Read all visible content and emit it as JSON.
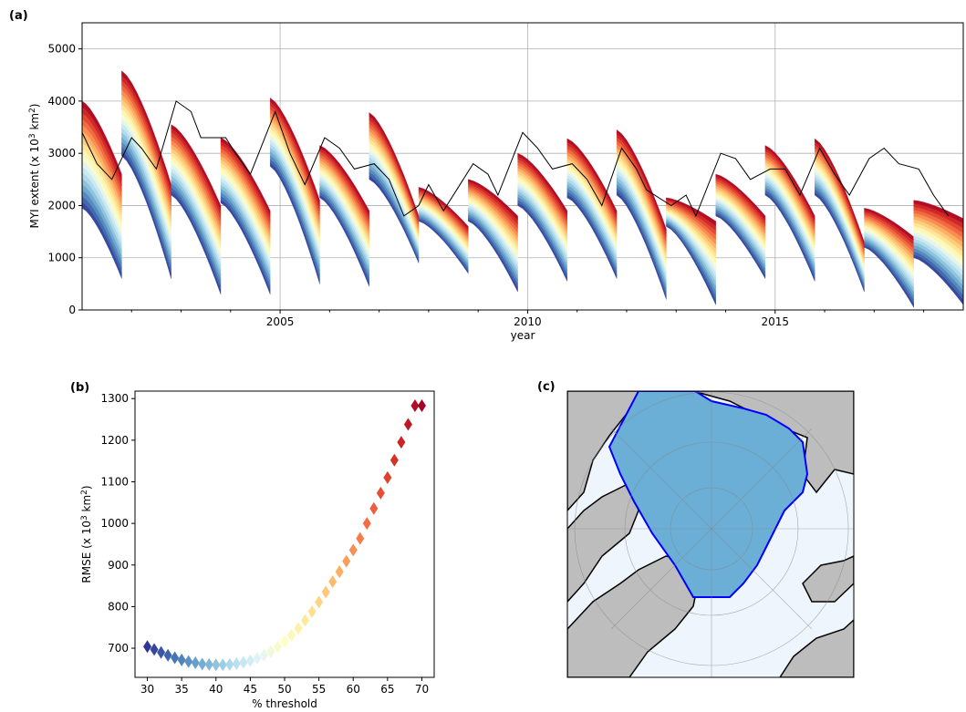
{
  "figure": {
    "panel_a_label": "(a)",
    "panel_b_label": "(b)",
    "panel_c_label": "(c)"
  },
  "chart_data": [
    {
      "panel": "(a)",
      "type": "line",
      "title": "",
      "xlabel": "year",
      "ylabel": "MYI extent (x 10³ km²)",
      "ylabel_parts": {
        "main": "MYI extent (x 10",
        "sup1": "3",
        "mid": " km",
        "sup2": "2",
        "end": ")"
      },
      "xlim": [
        2001.0,
        2018.8
      ],
      "ylim": [
        0,
        5500
      ],
      "xticks": [
        2005,
        2010,
        2015
      ],
      "xtick_labels": [
        "2005",
        "2010",
        "2015"
      ],
      "yticks": [
        0,
        1000,
        2000,
        3000,
        4000,
        5000
      ],
      "ytick_labels": [
        "0",
        "1000",
        "2000",
        "3000",
        "4000",
        "5000"
      ],
      "grid": true,
      "colormap": "RdYlBu (red = high threshold, blue = low threshold)",
      "cmap_colors": [
        "#a50026",
        "#d73027",
        "#f46d43",
        "#fdae61",
        "#fee090",
        "#ffffbf",
        "#e0f3f8",
        "#abd9e9",
        "#74add1",
        "#4575b4",
        "#313695"
      ],
      "envelope_note": "bands span seasonal MYI extent for thresholds 30-70 %",
      "seasons": [
        {
          "start": 2001.0,
          "end": 2001.8,
          "top_start": 4000,
          "top_end": 2600,
          "bot_start": 1950,
          "bot_end": 600
        },
        {
          "start": 2001.8,
          "end": 2002.8,
          "top_start": 4580,
          "top_end": 2400,
          "bot_start": 2950,
          "bot_end": 600
        },
        {
          "start": 2002.8,
          "end": 2003.8,
          "top_start": 3550,
          "top_end": 2000,
          "bot_start": 2200,
          "bot_end": 300
        },
        {
          "start": 2003.8,
          "end": 2004.8,
          "top_start": 3300,
          "top_end": 1900,
          "bot_start": 2050,
          "bot_end": 300
        },
        {
          "start": 2004.8,
          "end": 2005.8,
          "top_start": 4060,
          "top_end": 2100,
          "bot_start": 2750,
          "bot_end": 500
        },
        {
          "start": 2005.8,
          "end": 2006.8,
          "top_start": 3150,
          "top_end": 1900,
          "bot_start": 2150,
          "bot_end": 450
        },
        {
          "start": 2006.8,
          "end": 2007.8,
          "top_start": 3780,
          "top_end": 1800,
          "bot_start": 2500,
          "bot_end": 900
        },
        {
          "start": 2007.8,
          "end": 2008.8,
          "top_start": 2350,
          "top_end": 1600,
          "bot_start": 1700,
          "bot_end": 700
        },
        {
          "start": 2008.8,
          "end": 2009.8,
          "top_start": 2500,
          "top_end": 1800,
          "bot_start": 1700,
          "bot_end": 350
        },
        {
          "start": 2009.8,
          "end": 2010.8,
          "top_start": 3000,
          "top_end": 1900,
          "bot_start": 2000,
          "bot_end": 550
        },
        {
          "start": 2010.8,
          "end": 2011.8,
          "top_start": 3280,
          "top_end": 1900,
          "bot_start": 2150,
          "bot_end": 600
        },
        {
          "start": 2011.8,
          "end": 2012.8,
          "top_start": 3450,
          "top_end": 1550,
          "bot_start": 2200,
          "bot_end": 200
        },
        {
          "start": 2012.8,
          "end": 2013.8,
          "top_start": 2150,
          "top_end": 1700,
          "bot_start": 1600,
          "bot_end": 100
        },
        {
          "start": 2013.8,
          "end": 2014.8,
          "top_start": 2600,
          "top_end": 1800,
          "bot_start": 1800,
          "bot_end": 600
        },
        {
          "start": 2014.8,
          "end": 2015.8,
          "top_start": 3150,
          "top_end": 1800,
          "bot_start": 2200,
          "bot_end": 550
        },
        {
          "start": 2015.8,
          "end": 2016.8,
          "top_start": 3280,
          "top_end": 1300,
          "bot_start": 2200,
          "bot_end": 350
        },
        {
          "start": 2016.8,
          "end": 2017.8,
          "top_start": 1950,
          "top_end": 1400,
          "bot_start": 1200,
          "bot_end": 50
        },
        {
          "start": 2017.8,
          "end": 2018.8,
          "top_start": 2100,
          "top_end": 1750,
          "bot_start": 1000,
          "bot_end": 100
        }
      ],
      "observed": {
        "color": "#000000",
        "x": [
          2001.0,
          2001.3,
          2001.6,
          2002.0,
          2002.2,
          2002.5,
          2002.9,
          2003.2,
          2003.4,
          2003.9,
          2004.1,
          2004.4,
          2004.9,
          2005.2,
          2005.5,
          2005.9,
          2006.2,
          2006.5,
          2006.9,
          2007.2,
          2007.5,
          2007.8,
          2008.0,
          2008.3,
          2008.9,
          2009.2,
          2009.4,
          2009.9,
          2010.2,
          2010.5,
          2010.9,
          2011.2,
          2011.5,
          2011.9,
          2012.2,
          2012.4,
          2012.9,
          2013.2,
          2013.4,
          2013.9,
          2014.2,
          2014.5,
          2014.9,
          2015.2,
          2015.5,
          2015.9,
          2016.2,
          2016.5,
          2016.9,
          2017.2,
          2017.5,
          2017.9,
          2018.2,
          2018.5
        ],
        "y": [
          3400,
          2800,
          2500,
          3300,
          3100,
          2700,
          4000,
          3800,
          3300,
          3300,
          3000,
          2600,
          3800,
          3000,
          2400,
          3300,
          3100,
          2700,
          2800,
          2500,
          1800,
          2000,
          2400,
          1900,
          2800,
          2600,
          2200,
          3400,
          3100,
          2700,
          2800,
          2500,
          2000,
          3100,
          2700,
          2300,
          2000,
          2200,
          1800,
          3000,
          2900,
          2500,
          2700,
          2700,
          2200,
          3100,
          2600,
          2200,
          2900,
          3100,
          2800,
          2700,
          2200,
          1800
        ]
      }
    },
    {
      "panel": "(b)",
      "type": "scatter",
      "title": "",
      "xlabel": "% threshold",
      "ylabel": "RMSE (x 10³ km²)",
      "ylabel_parts": {
        "main": "RMSE (x 10",
        "sup1": "3",
        "mid": " km",
        "sup2": "2",
        "end": ")"
      },
      "xlim": [
        28.2,
        71.8
      ],
      "ylim": [
        630,
        1318
      ],
      "xticks": [
        30,
        35,
        40,
        45,
        50,
        55,
        60,
        65,
        70
      ],
      "xtick_labels": [
        "30",
        "35",
        "40",
        "45",
        "50",
        "55",
        "60",
        "65",
        "70"
      ],
      "yticks": [
        700,
        800,
        900,
        1000,
        1100,
        1200,
        1300
      ],
      "ytick_labels": [
        "700",
        "800",
        "900",
        "1000",
        "1100",
        "1200",
        "1300"
      ],
      "marker": "diamond",
      "grid": false,
      "x": [
        30,
        31,
        32,
        33,
        34,
        35,
        36,
        37,
        38,
        39,
        40,
        41,
        42,
        43,
        44,
        45,
        46,
        47,
        48,
        49,
        50,
        51,
        52,
        53,
        54,
        55,
        56,
        57,
        58,
        59,
        60,
        61,
        62,
        63,
        64,
        65,
        66,
        67,
        68,
        69,
        70
      ],
      "y": [
        704,
        697,
        690,
        683,
        677,
        672,
        668,
        665,
        662,
        661,
        660,
        660,
        661,
        663,
        666,
        670,
        676,
        683,
        692,
        703,
        716,
        731,
        748,
        767,
        788,
        811,
        835,
        860,
        884,
        909,
        936,
        964,
        1000,
        1036,
        1073,
        1110,
        1152,
        1195,
        1238,
        1283,
        1283
      ]
    },
    {
      "panel": "(c)",
      "type": "map",
      "title": "",
      "projection": "north polar stereographic",
      "region_fill_color": "#6baed6",
      "region_outline_color": "#0000ff",
      "ocean_color": "#eef5fc",
      "land_color": "#bdbdbd"
    }
  ]
}
